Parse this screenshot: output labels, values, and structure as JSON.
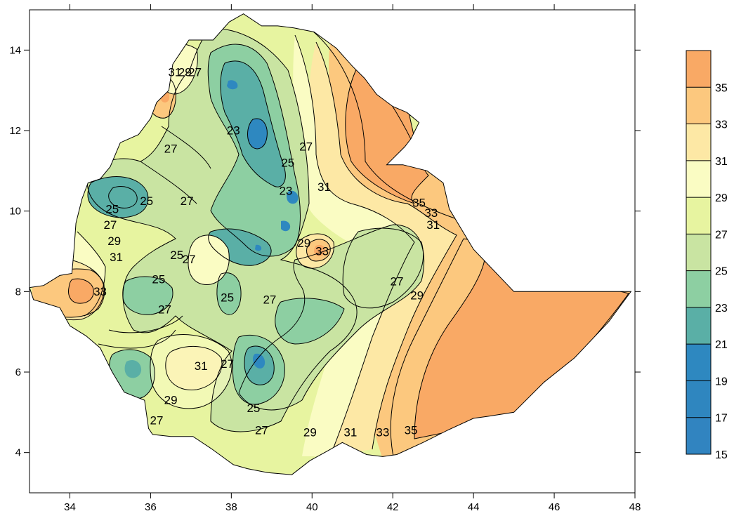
{
  "map": {
    "type": "filled-contour",
    "x_axis": {
      "range": [
        33,
        48
      ],
      "ticks": [
        "34",
        "36",
        "38",
        "40",
        "42",
        "44",
        "46",
        "48"
      ]
    },
    "y_axis": {
      "range": [
        3,
        15
      ],
      "ticks": [
        "4",
        "6",
        "8",
        "10",
        "12",
        "14"
      ]
    },
    "contour_labels": [
      {
        "text": "31",
        "lon": 35.15,
        "lat": 8.85
      },
      {
        "text": "33",
        "lon": 34.75,
        "lat": 8.0
      },
      {
        "text": "29",
        "lon": 35.1,
        "lat": 9.25
      },
      {
        "text": "27",
        "lon": 35.0,
        "lat": 9.65
      },
      {
        "text": "25",
        "lon": 35.05,
        "lat": 10.05
      },
      {
        "text": "25",
        "lon": 35.9,
        "lat": 10.25
      },
      {
        "text": "27",
        "lon": 36.9,
        "lat": 10.25
      },
      {
        "text": "31",
        "lon": 36.6,
        "lat": 13.45
      },
      {
        "text": "29",
        "lon": 36.85,
        "lat": 13.45
      },
      {
        "text": "27",
        "lon": 37.1,
        "lat": 13.45
      },
      {
        "text": "27",
        "lon": 36.5,
        "lat": 11.55
      },
      {
        "text": "23",
        "lon": 38.05,
        "lat": 12.0
      },
      {
        "text": "27",
        "lon": 39.85,
        "lat": 11.6
      },
      {
        "text": "25",
        "lon": 39.4,
        "lat": 11.2
      },
      {
        "text": "23",
        "lon": 39.35,
        "lat": 10.5
      },
      {
        "text": "31",
        "lon": 40.3,
        "lat": 10.6
      },
      {
        "text": "35",
        "lon": 42.65,
        "lat": 10.2
      },
      {
        "text": "33",
        "lon": 42.95,
        "lat": 9.95
      },
      {
        "text": "31",
        "lon": 43.0,
        "lat": 9.65
      },
      {
        "text": "29",
        "lon": 39.8,
        "lat": 9.2
      },
      {
        "text": "33",
        "lon": 40.25,
        "lat": 9.0
      },
      {
        "text": "25",
        "lon": 36.65,
        "lat": 8.9
      },
      {
        "text": "27",
        "lon": 36.95,
        "lat": 8.8
      },
      {
        "text": "25",
        "lon": 36.2,
        "lat": 8.3
      },
      {
        "text": "27",
        "lon": 36.35,
        "lat": 7.55
      },
      {
        "text": "25",
        "lon": 37.9,
        "lat": 7.85
      },
      {
        "text": "27",
        "lon": 38.95,
        "lat": 7.8
      },
      {
        "text": "27",
        "lon": 42.1,
        "lat": 8.25
      },
      {
        "text": "29",
        "lon": 42.6,
        "lat": 7.9
      },
      {
        "text": "31",
        "lon": 37.25,
        "lat": 6.15
      },
      {
        "text": "27",
        "lon": 37.9,
        "lat": 6.2
      },
      {
        "text": "29",
        "lon": 36.5,
        "lat": 5.3
      },
      {
        "text": "25",
        "lon": 38.55,
        "lat": 5.1
      },
      {
        "text": "27",
        "lon": 36.15,
        "lat": 4.8
      },
      {
        "text": "27",
        "lon": 38.75,
        "lat": 4.55
      },
      {
        "text": "29",
        "lon": 39.95,
        "lat": 4.5
      },
      {
        "text": "31",
        "lon": 40.95,
        "lat": 4.5
      },
      {
        "text": "33",
        "lon": 41.75,
        "lat": 4.5
      },
      {
        "text": "35",
        "lon": 42.45,
        "lat": 4.55
      }
    ]
  },
  "colorbar": {
    "labels": [
      "35",
      "33",
      "31",
      "29",
      "27",
      "25",
      "23",
      "21",
      "19",
      "17",
      "15"
    ],
    "bands": [
      {
        "from": 35,
        "color": "#f9a965"
      },
      {
        "from": 33,
        "color": "#fcc87e"
      },
      {
        "from": 31,
        "color": "#fde8a5"
      },
      {
        "from": 29,
        "color": "#fafcc3"
      },
      {
        "from": 27,
        "color": "#e7f4a0"
      },
      {
        "from": 25,
        "color": "#c9e4a2"
      },
      {
        "from": 23,
        "color": "#8dcfa2"
      },
      {
        "from": 21,
        "color": "#5aafa6"
      },
      {
        "from": 19,
        "color": "#2e88c0"
      },
      {
        "from": 17,
        "color": "#2f86bf"
      },
      {
        "from": 15,
        "color": "#3184c0"
      }
    ]
  },
  "colors": {
    "c35": "#f9a965",
    "c33": "#fcc87e",
    "c31": "#fde8a5",
    "c29": "#fafcc3",
    "c27": "#e7f4a0",
    "c25": "#c9e4a2",
    "c23": "#8dcfa2",
    "c21": "#5aafa6",
    "c19": "#2e88c0"
  }
}
